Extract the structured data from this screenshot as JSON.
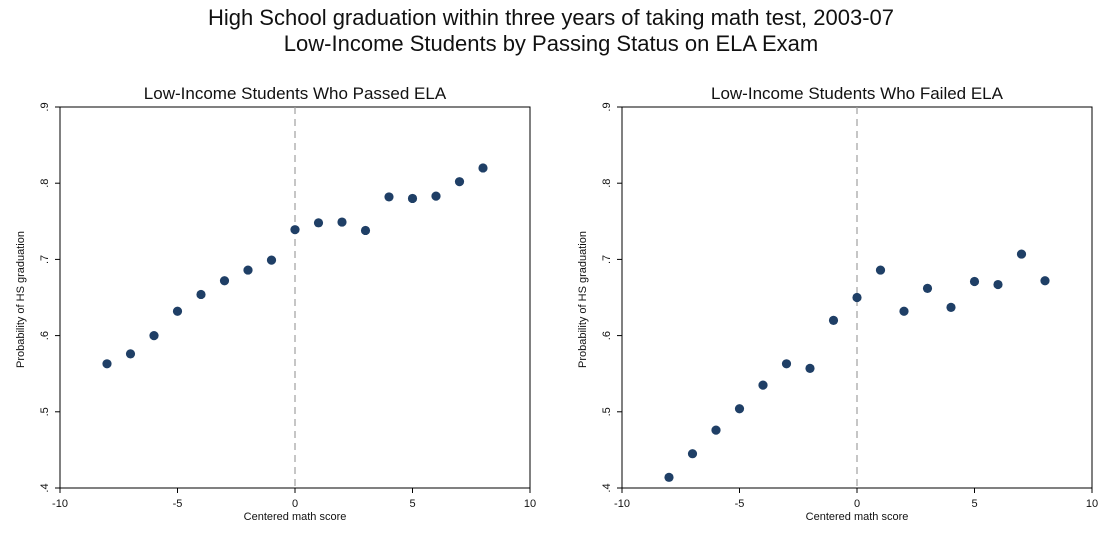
{
  "figure": {
    "title_line1": "High School graduation within three years of taking math test, 2003-07",
    "title_line2": "Low-Income Students by Passing Status on ELA Exam"
  },
  "colors": {
    "marker": "#1f3f66",
    "cutoff_line": "#a0a0a0",
    "frame": "#000000"
  },
  "chart_data": [
    {
      "type": "scatter",
      "title": "Low-Income Students Who Passed ELA",
      "xlabel": "Centered math score",
      "ylabel": "Probability of HS graduation",
      "xlim": [
        -10,
        10
      ],
      "ylim": [
        0.4,
        0.9
      ],
      "xticks": [
        -10,
        -5,
        0,
        5,
        10
      ],
      "xtick_labels": [
        "-10",
        "-5",
        "0",
        "5",
        "10"
      ],
      "yticks": [
        0.4,
        0.5,
        0.6,
        0.7,
        0.8,
        0.9
      ],
      "ytick_labels": [
        ".4",
        ".5",
        ".6",
        ".7",
        ".8",
        ".9"
      ],
      "cutoff_x": 0,
      "grid": false,
      "x": [
        -8,
        -7,
        -6,
        -5,
        -4,
        -3,
        -2,
        -1,
        0,
        1,
        2,
        3,
        4,
        5,
        6,
        7,
        8
      ],
      "y": [
        0.563,
        0.576,
        0.6,
        0.632,
        0.654,
        0.672,
        0.686,
        0.699,
        0.739,
        0.748,
        0.749,
        0.738,
        0.782,
        0.78,
        0.783,
        0.802,
        0.82
      ]
    },
    {
      "type": "scatter",
      "title": "Low-Income Students Who Failed ELA",
      "xlabel": "Centered math score",
      "ylabel": "Probability of HS graduation",
      "xlim": [
        -10,
        10
      ],
      "ylim": [
        0.4,
        0.9
      ],
      "xticks": [
        -10,
        -5,
        0,
        5,
        10
      ],
      "xtick_labels": [
        "-10",
        "-5",
        "0",
        "5",
        "10"
      ],
      "yticks": [
        0.4,
        0.5,
        0.6,
        0.7,
        0.8,
        0.9
      ],
      "ytick_labels": [
        ".4",
        ".5",
        ".6",
        ".7",
        ".8",
        ".9"
      ],
      "cutoff_x": 0,
      "grid": false,
      "x": [
        -8,
        -7,
        -6,
        -5,
        -4,
        -3,
        -2,
        -1,
        0,
        1,
        2,
        3,
        4,
        5,
        6,
        7,
        8
      ],
      "y": [
        0.414,
        0.445,
        0.476,
        0.504,
        0.535,
        0.563,
        0.557,
        0.62,
        0.65,
        0.686,
        0.632,
        0.662,
        0.637,
        0.671,
        0.667,
        0.707,
        0.672
      ]
    }
  ]
}
